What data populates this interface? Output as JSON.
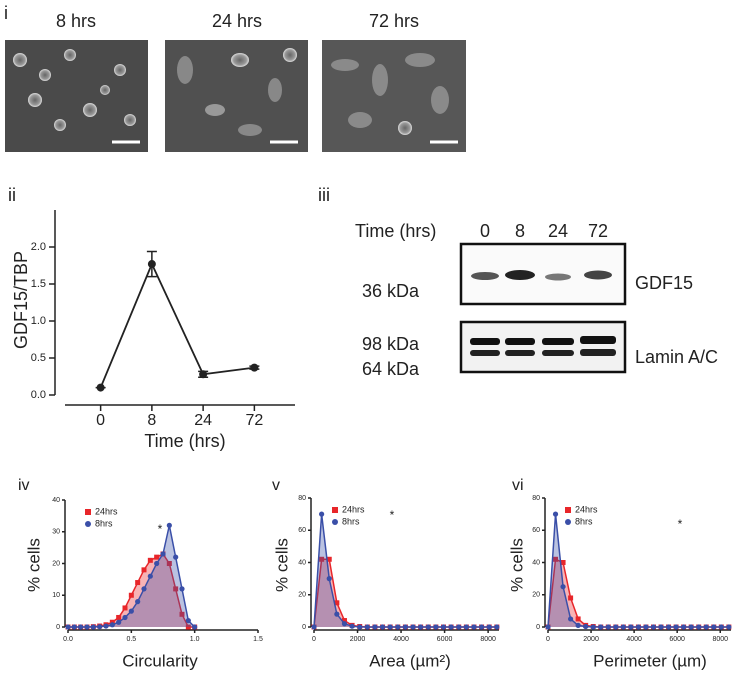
{
  "panel_labels": [
    "i",
    "ii",
    "iii",
    "iv",
    "v",
    "vi"
  ],
  "image_labels": [
    "8 hrs",
    "24 hrs",
    "72 hrs"
  ],
  "blot": {
    "x_label": "Time (hrs)",
    "lanes": [
      "0",
      "8",
      "24",
      "72"
    ],
    "top": {
      "markers": [
        "36 kDa"
      ],
      "protein": "GDF15"
    },
    "bottom": {
      "markers": [
        "98 kDa",
        "64 kDa"
      ],
      "protein": "Lamin A/C"
    }
  },
  "chart_data": [
    {
      "type": "line",
      "categories": [
        "0",
        "8",
        "24",
        "72"
      ],
      "values": [
        0.1,
        1.77,
        0.28,
        0.37
      ],
      "errors": [
        0,
        0.17,
        0.04,
        0.02
      ],
      "color": "#222222",
      "ylim": [
        0,
        2.5
      ],
      "yticks": [
        {
          "value": 0,
          "label": "0.0"
        },
        {
          "value": 0.5,
          "label": "0.5"
        },
        {
          "value": 1,
          "label": "1.0"
        },
        {
          "value": 1.5,
          "label": "1.5"
        },
        {
          "value": 2,
          "label": "2.0"
        }
      ],
      "xlabel": "Time (hrs)",
      "ylabel": "GDF15/TBP"
    },
    {
      "type": "area",
      "x": [
        0,
        0.05,
        0.1,
        0.15,
        0.2,
        0.25,
        0.3,
        0.35,
        0.4,
        0.45,
        0.5,
        0.55,
        0.6,
        0.65,
        0.7,
        0.75,
        0.8,
        0.85,
        0.9,
        0.95,
        1.0
      ],
      "series": [
        {
          "name": "24hrs",
          "color": "#e8262a",
          "marker": "square",
          "values": [
            0,
            0,
            0,
            0,
            0.1,
            0.3,
            0.7,
            1.5,
            3,
            6,
            10,
            14,
            18,
            21,
            22,
            23,
            20,
            12,
            4,
            0,
            0
          ]
        },
        {
          "name": "8hrs",
          "color": "#3a4fa8",
          "marker": "circle",
          "values": [
            0,
            0,
            0,
            0,
            0,
            0.1,
            0.3,
            0.7,
            1.5,
            3,
            5,
            8,
            12,
            16,
            20,
            23,
            32,
            22,
            12,
            2,
            0
          ]
        }
      ],
      "xlim": [
        0,
        1.5
      ],
      "xticks": [
        {
          "value": 0,
          "label": "0.0"
        },
        {
          "value": 0.5,
          "label": "0.5"
        },
        {
          "value": 1,
          "label": "1.0"
        },
        {
          "value": 1.5,
          "label": "1.5"
        }
      ],
      "ylim": [
        0,
        40
      ],
      "yticks": [
        0,
        10,
        20,
        30,
        40
      ],
      "xlabel": "Circularity",
      "ylabel": "% cells",
      "annotation": "*"
    },
    {
      "type": "area",
      "x": [
        0,
        350,
        700,
        1050,
        1400,
        1750,
        2100,
        2450,
        2800,
        3150,
        3500,
        3850,
        4200,
        4550,
        4900,
        5250,
        5600,
        5950,
        6300,
        6650,
        7000,
        7350,
        7700,
        8050,
        8400
      ],
      "series": [
        {
          "name": "24hrs",
          "color": "#e8262a",
          "marker": "square",
          "values": [
            0,
            42,
            42,
            15,
            4,
            1,
            0.3,
            0,
            0,
            0,
            0,
            0,
            0,
            0,
            0,
            0,
            0,
            0,
            0,
            0,
            0,
            0,
            0,
            0,
            0
          ]
        },
        {
          "name": "8hrs",
          "color": "#3a4fa8",
          "marker": "circle",
          "values": [
            0,
            70,
            30,
            8,
            2,
            0.5,
            0,
            0,
            0,
            0,
            0,
            0,
            0,
            0,
            0,
            0,
            0,
            0,
            0,
            0,
            0,
            0,
            0,
            0,
            0
          ]
        }
      ],
      "xlim": [
        0,
        8500
      ],
      "xticks": [
        0,
        2000,
        4000,
        6000,
        8000
      ],
      "ylim": [
        0,
        80
      ],
      "yticks": [
        0,
        20,
        40,
        60,
        80
      ],
      "xlabel": "Area (µm²)",
      "ylabel": "% cells",
      "annotation": "*"
    },
    {
      "type": "area",
      "x": [
        0,
        350,
        700,
        1050,
        1400,
        1750,
        2100,
        2450,
        2800,
        3150,
        3500,
        3850,
        4200,
        4550,
        4900,
        5250,
        5600,
        5950,
        6300,
        6650,
        7000,
        7350,
        7700,
        8050,
        8400
      ],
      "series": [
        {
          "name": "24hrs",
          "color": "#e8262a",
          "marker": "square",
          "values": [
            0,
            42,
            40,
            18,
            5,
            1,
            0.3,
            0,
            0,
            0,
            0,
            0,
            0,
            0,
            0,
            0,
            0,
            0,
            0,
            0,
            0,
            0,
            0,
            0,
            0
          ]
        },
        {
          "name": "8hrs",
          "color": "#3a4fa8",
          "marker": "circle",
          "values": [
            0,
            70,
            25,
            5,
            1,
            0.3,
            0,
            0,
            0,
            0,
            0,
            0,
            0,
            0,
            0,
            0,
            0,
            0,
            0,
            0,
            0,
            0,
            0,
            0,
            0
          ]
        }
      ],
      "xlim": [
        0,
        8500
      ],
      "xticks": [
        0,
        2000,
        4000,
        6000,
        8000
      ],
      "ylim": [
        0,
        80
      ],
      "yticks": [
        0,
        20,
        40,
        60,
        80
      ],
      "xlabel": "Perimeter (µm)",
      "ylabel": "% cells",
      "annotation": "*"
    }
  ]
}
